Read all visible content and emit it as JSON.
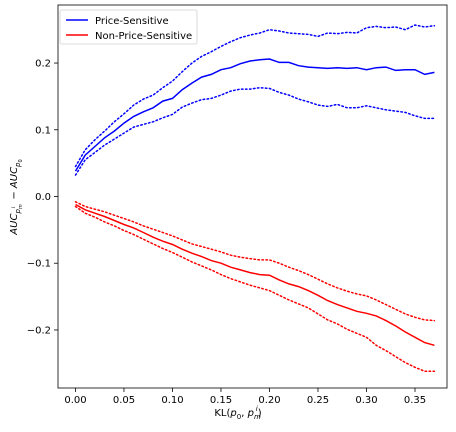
{
  "chart_data": {
    "type": "line",
    "xlabel_main": "KL(",
    "xlabel_sub0": "0",
    "xlabel_mid": ", ",
    "xlabel_sub_m": "m",
    "xlabel_sup_i": "i",
    "xlabel_close": ")",
    "ylabel_tex": "AUC_{p_m^i} − AUC_{p_0}",
    "xlim": [
      -0.018,
      0.383
    ],
    "ylim": [
      -0.287,
      0.287
    ],
    "xticks": [
      0.0,
      0.05,
      0.1,
      0.15,
      0.2,
      0.25,
      0.3,
      0.35
    ],
    "xtick_labels": [
      "0.00",
      "0.05",
      "0.10",
      "0.15",
      "0.20",
      "0.25",
      "0.30",
      "0.35"
    ],
    "yticks": [
      -0.2,
      -0.1,
      0.0,
      0.1,
      0.2
    ],
    "ytick_labels": [
      "−0.2",
      "−0.1",
      "0.0",
      "0.1",
      "0.2"
    ],
    "legend_position": "top-left",
    "x": [
      0.0,
      0.01,
      0.02,
      0.03,
      0.04,
      0.05,
      0.06,
      0.07,
      0.08,
      0.09,
      0.1,
      0.11,
      0.12,
      0.13,
      0.14,
      0.15,
      0.16,
      0.17,
      0.18,
      0.19,
      0.2,
      0.21,
      0.22,
      0.23,
      0.24,
      0.25,
      0.26,
      0.27,
      0.28,
      0.29,
      0.3,
      0.31,
      0.32,
      0.33,
      0.34,
      0.35,
      0.36,
      0.37
    ],
    "series": [
      {
        "name": "Price-Sensitive",
        "color": "#0000ff",
        "mean": [
          0.038,
          0.062,
          0.075,
          0.088,
          0.098,
          0.11,
          0.12,
          0.127,
          0.133,
          0.143,
          0.147,
          0.16,
          0.17,
          0.179,
          0.183,
          0.19,
          0.193,
          0.199,
          0.203,
          0.205,
          0.206,
          0.201,
          0.201,
          0.196,
          0.194,
          0.193,
          0.192,
          0.193,
          0.192,
          0.193,
          0.19,
          0.193,
          0.194,
          0.189,
          0.19,
          0.19,
          0.183,
          0.186
        ],
        "upper": [
          0.045,
          0.07,
          0.085,
          0.098,
          0.112,
          0.124,
          0.137,
          0.146,
          0.152,
          0.163,
          0.173,
          0.187,
          0.2,
          0.21,
          0.217,
          0.225,
          0.232,
          0.238,
          0.242,
          0.245,
          0.25,
          0.248,
          0.245,
          0.244,
          0.243,
          0.24,
          0.245,
          0.244,
          0.246,
          0.245,
          0.253,
          0.255,
          0.253,
          0.254,
          0.25,
          0.257,
          0.254,
          0.256
        ],
        "lower": [
          0.032,
          0.055,
          0.066,
          0.077,
          0.086,
          0.095,
          0.104,
          0.108,
          0.112,
          0.118,
          0.123,
          0.134,
          0.14,
          0.145,
          0.147,
          0.152,
          0.158,
          0.161,
          0.161,
          0.163,
          0.162,
          0.156,
          0.152,
          0.146,
          0.142,
          0.137,
          0.135,
          0.138,
          0.133,
          0.133,
          0.136,
          0.133,
          0.13,
          0.128,
          0.126,
          0.121,
          0.117,
          0.117
        ]
      },
      {
        "name": "Non-Price-Sensitive",
        "color": "#ff0000",
        "mean": [
          -0.012,
          -0.02,
          -0.025,
          -0.03,
          -0.036,
          -0.042,
          -0.047,
          -0.054,
          -0.061,
          -0.067,
          -0.072,
          -0.079,
          -0.085,
          -0.09,
          -0.096,
          -0.1,
          -0.106,
          -0.11,
          -0.114,
          -0.117,
          -0.118,
          -0.125,
          -0.131,
          -0.135,
          -0.141,
          -0.148,
          -0.156,
          -0.162,
          -0.167,
          -0.172,
          -0.175,
          -0.179,
          -0.186,
          -0.194,
          -0.203,
          -0.211,
          -0.219,
          -0.223
        ],
        "upper": [
          -0.008,
          -0.015,
          -0.019,
          -0.023,
          -0.028,
          -0.033,
          -0.038,
          -0.044,
          -0.049,
          -0.054,
          -0.059,
          -0.065,
          -0.071,
          -0.075,
          -0.079,
          -0.083,
          -0.088,
          -0.091,
          -0.093,
          -0.095,
          -0.095,
          -0.1,
          -0.106,
          -0.111,
          -0.117,
          -0.124,
          -0.131,
          -0.137,
          -0.142,
          -0.146,
          -0.149,
          -0.155,
          -0.162,
          -0.169,
          -0.176,
          -0.181,
          -0.185,
          -0.186
        ],
        "lower": [
          -0.015,
          -0.025,
          -0.031,
          -0.038,
          -0.044,
          -0.051,
          -0.057,
          -0.064,
          -0.071,
          -0.078,
          -0.084,
          -0.091,
          -0.098,
          -0.104,
          -0.11,
          -0.117,
          -0.123,
          -0.128,
          -0.133,
          -0.137,
          -0.141,
          -0.148,
          -0.155,
          -0.161,
          -0.167,
          -0.176,
          -0.185,
          -0.191,
          -0.199,
          -0.205,
          -0.211,
          -0.223,
          -0.231,
          -0.24,
          -0.249,
          -0.256,
          -0.262,
          -0.262
        ]
      }
    ]
  }
}
